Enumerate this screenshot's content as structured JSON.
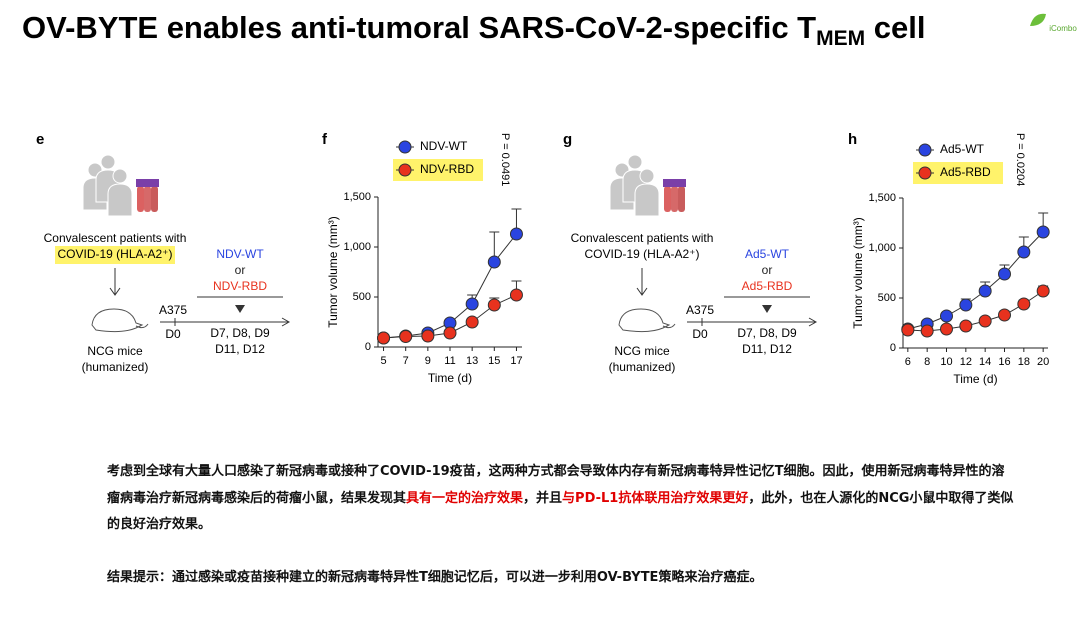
{
  "title": {
    "main": "OV-BYTE enables anti-tumoral SARS-CoV-2-specific T",
    "subscript": "MEM",
    "end": " cell"
  },
  "logo": "iCombo",
  "diagrams": [
    {
      "label": "e",
      "patients": [
        "Convalescent patients with",
        "COVID-19 (HLA-A2⁺)"
      ],
      "highlight_patients": true,
      "mice": [
        "NCG mice",
        "(humanized)"
      ],
      "cell_line": "A375",
      "day0": "D0",
      "treatments": [
        "NDV-WT",
        "or",
        "NDV-RBD"
      ],
      "days": [
        "D7, D8, D9",
        "D11, D12"
      ]
    },
    {
      "label": "g",
      "patients": [
        "Convalescent patients with",
        "COVID-19 (HLA-A2⁺)"
      ],
      "highlight_patients": false,
      "mice": [
        "NCG mice",
        "(humanized)"
      ],
      "cell_line": "A375",
      "day0": "D0",
      "treatments": [
        "Ad5-WT",
        "or",
        "Ad5-RBD"
      ],
      "days": [
        "D7, D8, D9",
        "D11, D12"
      ]
    }
  ],
  "chart_data": [
    {
      "type": "line",
      "panel_label": "f",
      "annotation": "P = 0.0491",
      "xlabel": "Time (d)",
      "ylabel": "Tumor volume (mm³)",
      "x": [
        5,
        7,
        9,
        11,
        13,
        15,
        17
      ],
      "xlim": [
        4.5,
        17.5
      ],
      "xticks": [
        5,
        7,
        9,
        11,
        13,
        15,
        17
      ],
      "ylim": [
        0,
        1500
      ],
      "yticks": [
        0,
        500,
        {
          "value": 1000,
          "label": "1,000"
        },
        {
          "value": 1500,
          "label": "1,500"
        }
      ],
      "series": [
        {
          "name": "NDV-WT",
          "color": "#2a44e0",
          "highlight": false,
          "values": [
            90,
            110,
            140,
            240,
            430,
            850,
            1130
          ],
          "errors": [
            0,
            0,
            0,
            30,
            90,
            300,
            250
          ]
        },
        {
          "name": "NDV-RBD",
          "color": "#e8321e",
          "highlight": true,
          "values": [
            90,
            105,
            110,
            140,
            250,
            420,
            520
          ],
          "errors": [
            0,
            0,
            0,
            0,
            30,
            70,
            140
          ]
        }
      ]
    },
    {
      "type": "line",
      "panel_label": "h",
      "annotation": "P = 0.0204",
      "xlabel": "Time (d)",
      "ylabel": "Tumor volume (mm³)",
      "x": [
        6,
        8,
        10,
        12,
        14,
        16,
        18,
        20
      ],
      "xlim": [
        5.5,
        20.5
      ],
      "xticks": [
        6,
        8,
        10,
        12,
        14,
        16,
        18,
        20
      ],
      "ylim": [
        0,
        1500
      ],
      "yticks": [
        0,
        500,
        {
          "value": 1000,
          "label": "1,000"
        },
        {
          "value": 1500,
          "label": "1,500"
        }
      ],
      "series": [
        {
          "name": "Ad5-WT",
          "color": "#2a44e0",
          "highlight": false,
          "values": [
            190,
            240,
            320,
            430,
            570,
            740,
            960,
            1160
          ],
          "errors": [
            0,
            30,
            30,
            60,
            90,
            90,
            150,
            190
          ]
        },
        {
          "name": "Ad5-RBD",
          "color": "#e8321e",
          "highlight": true,
          "values": [
            180,
            170,
            190,
            220,
            270,
            330,
            440,
            570
          ],
          "errors": [
            0,
            0,
            0,
            0,
            30,
            40,
            40,
            50
          ]
        }
      ]
    }
  ],
  "paragraphs": [
    {
      "segments": [
        {
          "text": "考虑到全球有大量人口感染了新冠病毒或接种了COVID-19疫苗，这两种方式都会导致体内存有新冠病毒特异性记忆T细胞。因此，使用新冠病毒特异性的溶瘤病毒治疗新冠病毒感染后的荷瘤小鼠，结果发现其",
          "emphasis": false
        },
        {
          "text": "具有一定的治疗效果",
          "emphasis": true
        },
        {
          "text": "，并且",
          "emphasis": false
        },
        {
          "text": "与PD-L1抗体联用治疗效果更好",
          "emphasis": true
        },
        {
          "text": "，此外，也在人源化的NCG小鼠中取得了类似的良好治疗效果。",
          "emphasis": false
        }
      ]
    },
    {
      "segments": [
        {
          "text": "结果提示：通过感染或疫苗接种建立的新冠病毒特异性T细胞记忆后，可以进一步利用OV-BYTE策略来治疗癌症。",
          "emphasis": false
        }
      ]
    }
  ]
}
